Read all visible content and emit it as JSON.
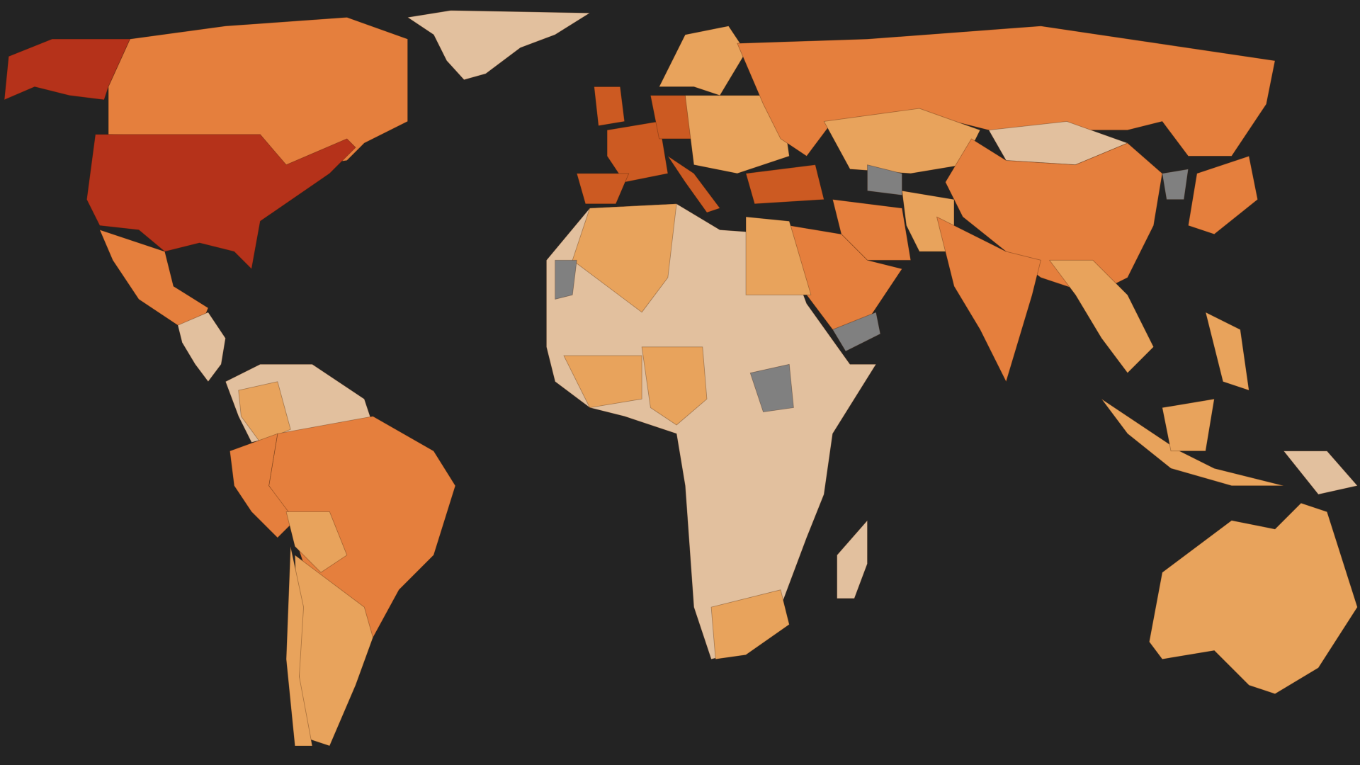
{
  "map": {
    "background": "#232323",
    "palette": [
      "#b5321a",
      "#cc5a22",
      "#e57f3d",
      "#e8a35c",
      "#e2c09e",
      "#808080"
    ]
  }
}
